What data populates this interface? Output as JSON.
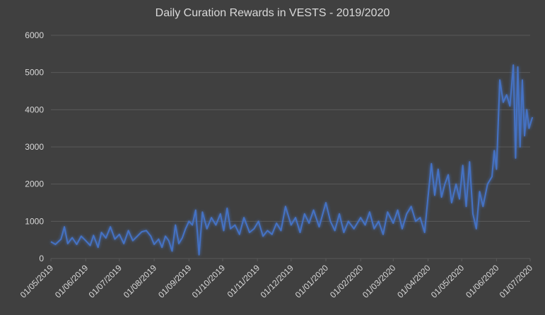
{
  "chart_data": {
    "type": "line",
    "title": "Daily Curation Rewards in VESTS - 2019/2020",
    "xlabel": "",
    "ylabel": "",
    "ylim": [
      0,
      6000
    ],
    "yticks": [
      0,
      1000,
      2000,
      3000,
      4000,
      5000,
      6000
    ],
    "xlim": [
      "2019-05-01",
      "2020-07-01"
    ],
    "xticks": [
      "01/05/2019",
      "01/06/2019",
      "01/07/2019",
      "01/08/2019",
      "01/09/2019",
      "01/10/2019",
      "01/11/2019",
      "01/12/2019",
      "01/01/2020",
      "01/02/2020",
      "01/03/2020",
      "01/04/2020",
      "01/05/2020",
      "01/06/2020",
      "01/07/2020"
    ],
    "grid": true,
    "legend": "none",
    "line_color": "#4472c4",
    "series": [
      {
        "values": [
          [
            "2019-05-01",
            450
          ],
          [
            "2019-05-05",
            380
          ],
          [
            "2019-05-10",
            520
          ],
          [
            "2019-05-13",
            850
          ],
          [
            "2019-05-16",
            400
          ],
          [
            "2019-05-20",
            560
          ],
          [
            "2019-05-24",
            380
          ],
          [
            "2019-05-28",
            600
          ],
          [
            "2019-06-01",
            480
          ],
          [
            "2019-06-05",
            350
          ],
          [
            "2019-06-08",
            620
          ],
          [
            "2019-06-12",
            300
          ],
          [
            "2019-06-15",
            700
          ],
          [
            "2019-06-19",
            550
          ],
          [
            "2019-06-23",
            850
          ],
          [
            "2019-06-27",
            520
          ],
          [
            "2019-07-01",
            650
          ],
          [
            "2019-07-05",
            400
          ],
          [
            "2019-07-09",
            750
          ],
          [
            "2019-07-13",
            480
          ],
          [
            "2019-07-17",
            600
          ],
          [
            "2019-07-21",
            720
          ],
          [
            "2019-07-25",
            750
          ],
          [
            "2019-07-29",
            600
          ],
          [
            "2019-08-01",
            380
          ],
          [
            "2019-08-05",
            520
          ],
          [
            "2019-08-08",
            300
          ],
          [
            "2019-08-11",
            600
          ],
          [
            "2019-08-14",
            480
          ],
          [
            "2019-08-17",
            200
          ],
          [
            "2019-08-20",
            900
          ],
          [
            "2019-08-23",
            400
          ],
          [
            "2019-08-26",
            550
          ],
          [
            "2019-08-29",
            800
          ],
          [
            "2019-09-01",
            1000
          ],
          [
            "2019-09-04",
            900
          ],
          [
            "2019-09-07",
            1300
          ],
          [
            "2019-09-10",
            100
          ],
          [
            "2019-09-13",
            1250
          ],
          [
            "2019-09-17",
            800
          ],
          [
            "2019-09-21",
            1100
          ],
          [
            "2019-09-25",
            900
          ],
          [
            "2019-09-29",
            1200
          ],
          [
            "2019-10-02",
            750
          ],
          [
            "2019-10-05",
            1350
          ],
          [
            "2019-10-08",
            800
          ],
          [
            "2019-10-12",
            900
          ],
          [
            "2019-10-16",
            650
          ],
          [
            "2019-10-20",
            1100
          ],
          [
            "2019-10-25",
            700
          ],
          [
            "2019-10-29",
            800
          ],
          [
            "2019-11-02",
            1000
          ],
          [
            "2019-11-06",
            600
          ],
          [
            "2019-11-10",
            750
          ],
          [
            "2019-11-14",
            650
          ],
          [
            "2019-11-18",
            950
          ],
          [
            "2019-11-22",
            750
          ],
          [
            "2019-11-26",
            1400
          ],
          [
            "2019-12-01",
            900
          ],
          [
            "2019-12-05",
            1100
          ],
          [
            "2019-12-09",
            700
          ],
          [
            "2019-12-13",
            1200
          ],
          [
            "2019-12-17",
            950
          ],
          [
            "2019-12-21",
            1300
          ],
          [
            "2019-12-26",
            850
          ],
          [
            "2020-01-01",
            1500
          ],
          [
            "2020-01-05",
            1000
          ],
          [
            "2020-01-09",
            750
          ],
          [
            "2020-01-13",
            1200
          ],
          [
            "2020-01-17",
            700
          ],
          [
            "2020-01-21",
            1000
          ],
          [
            "2020-01-26",
            800
          ],
          [
            "2020-02-01",
            1100
          ],
          [
            "2020-02-05",
            900
          ],
          [
            "2020-02-09",
            1250
          ],
          [
            "2020-02-13",
            800
          ],
          [
            "2020-02-17",
            1000
          ],
          [
            "2020-02-21",
            650
          ],
          [
            "2020-02-25",
            1250
          ],
          [
            "2020-03-01",
            950
          ],
          [
            "2020-03-05",
            1300
          ],
          [
            "2020-03-09",
            800
          ],
          [
            "2020-03-13",
            1200
          ],
          [
            "2020-03-17",
            1400
          ],
          [
            "2020-03-21",
            1000
          ],
          [
            "2020-03-25",
            1100
          ],
          [
            "2020-03-29",
            700
          ],
          [
            "2020-04-01",
            1650
          ],
          [
            "2020-04-04",
            2550
          ],
          [
            "2020-04-07",
            1700
          ],
          [
            "2020-04-10",
            2400
          ],
          [
            "2020-04-13",
            1650
          ],
          [
            "2020-04-16",
            2000
          ],
          [
            "2020-04-19",
            2250
          ],
          [
            "2020-04-22",
            1500
          ],
          [
            "2020-04-26",
            2000
          ],
          [
            "2020-04-29",
            1600
          ],
          [
            "2020-05-02",
            2500
          ],
          [
            "2020-05-05",
            1400
          ],
          [
            "2020-05-08",
            2600
          ],
          [
            "2020-05-11",
            1200
          ],
          [
            "2020-05-14",
            800
          ],
          [
            "2020-05-17",
            1800
          ],
          [
            "2020-05-20",
            1400
          ],
          [
            "2020-05-24",
            2000
          ],
          [
            "2020-05-28",
            2200
          ],
          [
            "2020-05-30",
            2900
          ],
          [
            "2020-06-01",
            2400
          ],
          [
            "2020-06-04",
            4800
          ],
          [
            "2020-06-07",
            4200
          ],
          [
            "2020-06-10",
            4400
          ],
          [
            "2020-06-13",
            4100
          ],
          [
            "2020-06-16",
            5200
          ],
          [
            "2020-06-18",
            2700
          ],
          [
            "2020-06-20",
            5150
          ],
          [
            "2020-06-22",
            3000
          ],
          [
            "2020-06-24",
            4800
          ],
          [
            "2020-06-26",
            3300
          ],
          [
            "2020-06-28",
            4000
          ],
          [
            "2020-06-30",
            3500
          ],
          [
            "2020-07-03",
            3800
          ]
        ]
      }
    ]
  }
}
